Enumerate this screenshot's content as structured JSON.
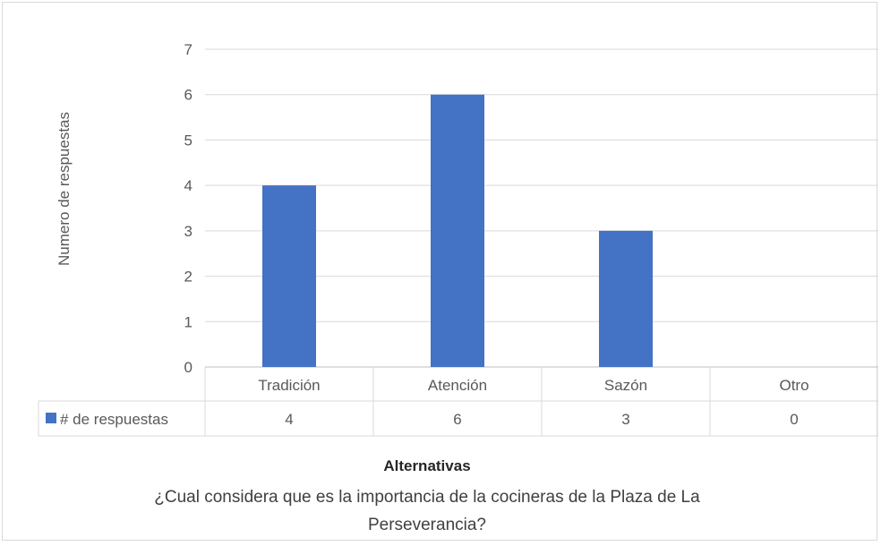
{
  "chart_data": {
    "type": "bar",
    "categories": [
      "Tradición",
      "Atención",
      "Sazón",
      "Otro"
    ],
    "series": [
      {
        "name": "# de respuestas",
        "values": [
          4,
          6,
          3,
          0
        ],
        "color": "#4472c4"
      }
    ],
    "ylabel": "Numero de respuestas",
    "xlabel": "Alternativas",
    "caption_lines": [
      "¿Cual considera que es la importancia de la cocineras de la Plaza de La",
      "Perseverancia?"
    ],
    "ylim": [
      0,
      7
    ],
    "yticks": [
      0,
      1,
      2,
      3,
      4,
      5,
      6,
      7
    ],
    "grid": true,
    "legend": "data-table"
  }
}
